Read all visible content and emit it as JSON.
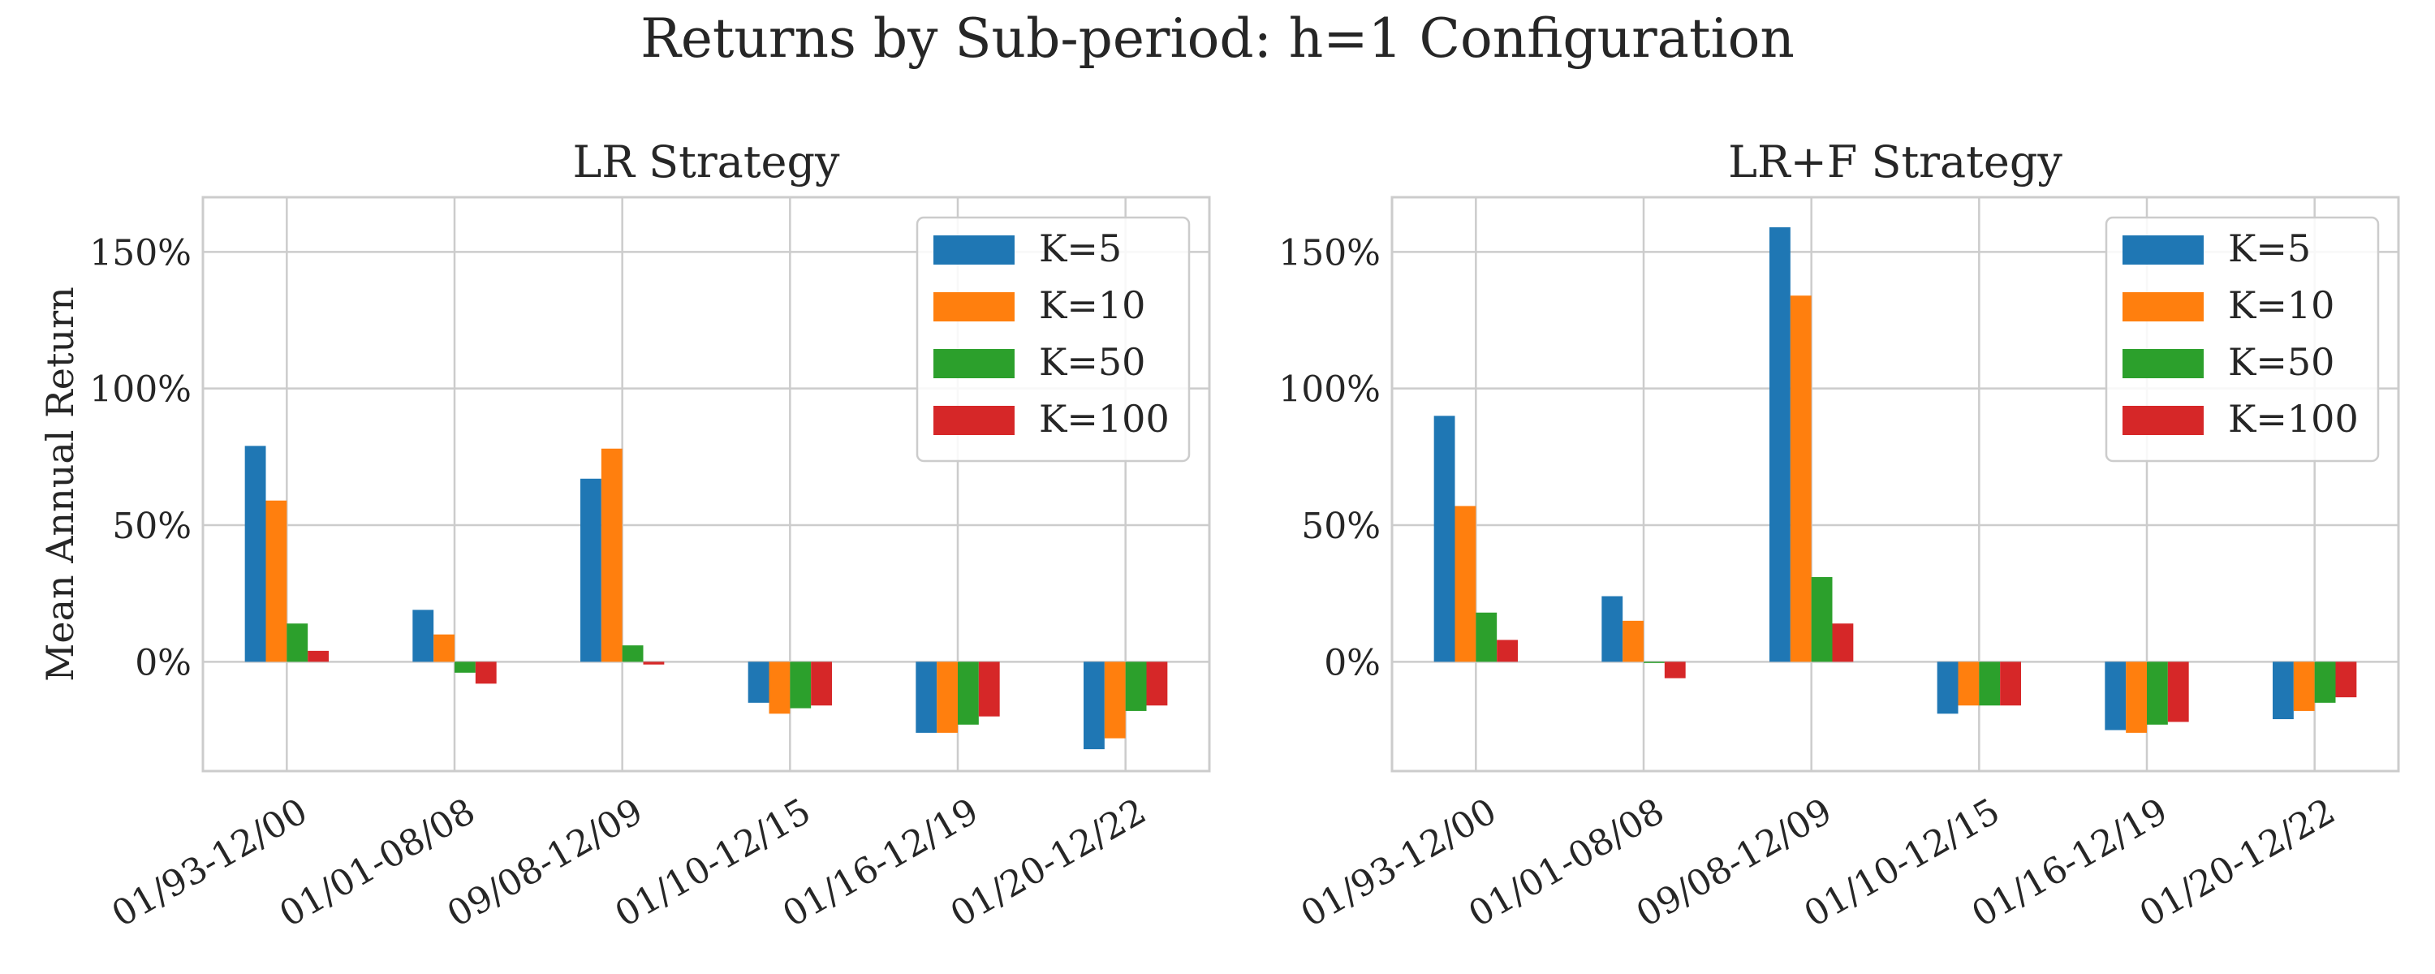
{
  "figure_title": "Returns by Sub-period: h=1 Configuration",
  "colors": {
    "K=5": "#1f77b4",
    "K=10": "#ff7f0e",
    "K=50": "#2ca02c",
    "K=100": "#d62728"
  },
  "chart_data": [
    {
      "type": "bar",
      "title": "LR Strategy",
      "ylabel": "Mean Annual Return",
      "xlabel": "",
      "categories": [
        "01/93-12/00",
        "01/01-08/08",
        "09/08-12/09",
        "01/10-12/15",
        "01/16-12/19",
        "01/20-12/22"
      ],
      "ylim": [
        -40,
        170
      ],
      "yticks": [
        0,
        50,
        100,
        150
      ],
      "ytick_labels": [
        "0%",
        "50%",
        "100%",
        "150%"
      ],
      "grid": true,
      "legend_position": "top-right",
      "series": [
        {
          "name": "K=5",
          "values": [
            79,
            19,
            67,
            -15,
            -26,
            -32
          ]
        },
        {
          "name": "K=10",
          "values": [
            59,
            10,
            78,
            -19,
            -26,
            -28
          ]
        },
        {
          "name": "K=50",
          "values": [
            14,
            -4,
            6,
            -17,
            -23,
            -18
          ]
        },
        {
          "name": "K=100",
          "values": [
            4,
            -8,
            -1,
            -16,
            -20,
            -16
          ]
        }
      ]
    },
    {
      "type": "bar",
      "title": "LR+F Strategy",
      "ylabel": "",
      "xlabel": "",
      "categories": [
        "01/93-12/00",
        "01/01-08/08",
        "09/08-12/09",
        "01/10-12/15",
        "01/16-12/19",
        "01/20-12/22"
      ],
      "ylim": [
        -40,
        170
      ],
      "yticks": [
        0,
        50,
        100,
        150
      ],
      "ytick_labels": [
        "0%",
        "50%",
        "100%",
        "150%"
      ],
      "grid": true,
      "legend_position": "top-right",
      "series": [
        {
          "name": "K=5",
          "values": [
            90,
            24,
            159,
            -19,
            -25,
            -21
          ]
        },
        {
          "name": "K=10",
          "values": [
            57,
            15,
            134,
            -16,
            -26,
            -18
          ]
        },
        {
          "name": "K=50",
          "values": [
            18,
            0,
            31,
            -16,
            -23,
            -15
          ]
        },
        {
          "name": "K=100",
          "values": [
            8,
            -6,
            14,
            -16,
            -22,
            -13
          ]
        }
      ]
    }
  ]
}
